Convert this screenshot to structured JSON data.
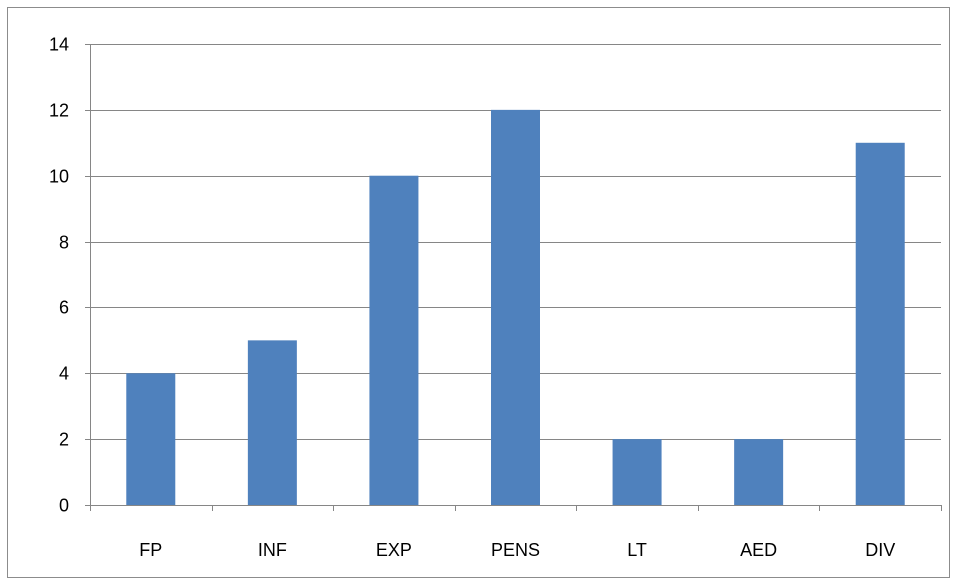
{
  "chart_data": {
    "type": "bar",
    "title": "",
    "xlabel": "",
    "ylabel": "",
    "categories": [
      "FP",
      "INF",
      "EXP",
      "PENS",
      "LT",
      "AED",
      "DIV"
    ],
    "values": [
      4,
      5,
      10,
      12,
      2,
      2,
      11
    ],
    "ylim": [
      0,
      14
    ],
    "yticks": [
      0,
      2,
      4,
      6,
      8,
      10,
      12,
      14
    ],
    "grid": true,
    "legend": "none",
    "bar_color": "#4f81bd",
    "grid_color": "#868686"
  }
}
